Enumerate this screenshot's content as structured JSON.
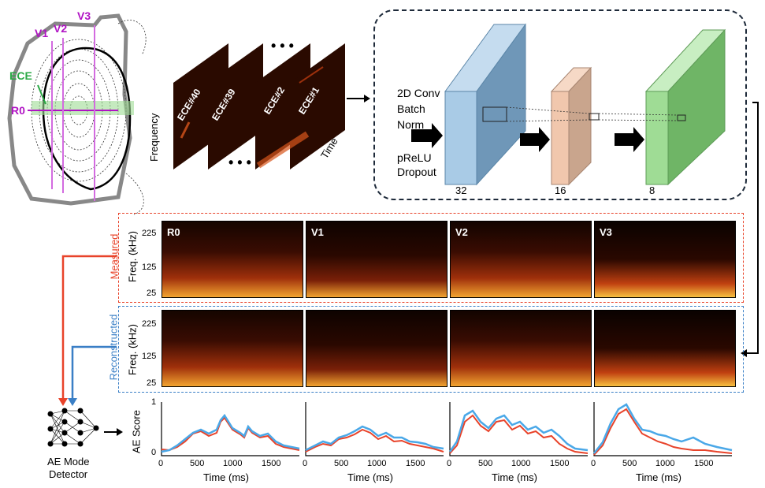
{
  "tokamak": {
    "labels": {
      "v1": "V1",
      "v2": "V2",
      "v3": "V3",
      "ece": "ECE",
      "r0": "R0"
    }
  },
  "ece_stack": {
    "panels": [
      "ECE#40",
      "ECE#39",
      "ECE#2",
      "ECE#1"
    ],
    "frequency_label": "Frequency",
    "time_label": "Time",
    "ellipsis": "• • •"
  },
  "cnn": {
    "conv_label_1": "2D Conv",
    "conv_label_2": "Batch",
    "conv_label_3": "Norm",
    "act_label_1": "pReLU",
    "act_label_2": "Dropout",
    "dims": [
      "32",
      "16",
      "8"
    ],
    "colors": {
      "block1": "#a9cbe6",
      "block2": "#f1c7ad",
      "block3": "#9fdc95"
    }
  },
  "spectrograms": {
    "channels": [
      "R0",
      "V1",
      "V2",
      "V3"
    ],
    "ylabel": "Freq. (kHz)",
    "yticks": [
      "225",
      "125",
      "25"
    ],
    "measured_label": "Measured",
    "reconstructed_label": "Reconstructed",
    "colors": {
      "measured": "#e8432a",
      "reconstructed": "#3a7fc6"
    }
  },
  "detector": {
    "label_1": "AE Mode",
    "label_2": "Detector"
  },
  "ae_plots": {
    "ylabel": "AE Score",
    "xlabel": "Time (ms)",
    "xticks": [
      "0",
      "500",
      "1000",
      "1500"
    ],
    "yticks": [
      "1",
      "0"
    ],
    "colors": {
      "measured": "#e8432a",
      "reconstructed": "#4aa8e8"
    }
  }
}
